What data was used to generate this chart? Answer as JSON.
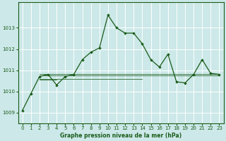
{
  "title": "Graphe pression niveau de la mer (hPa)",
  "background_color": "#cce8e8",
  "grid_color": "#ffffff",
  "line_color": "#1a5c1a",
  "marker_color": "#1a5c1a",
  "xlim": [
    -0.5,
    23.5
  ],
  "ylim": [
    1008.5,
    1014.2
  ],
  "yticks": [
    1009,
    1010,
    1011,
    1012,
    1013
  ],
  "xticks": [
    0,
    1,
    2,
    3,
    4,
    5,
    6,
    7,
    8,
    9,
    10,
    11,
    12,
    13,
    14,
    15,
    16,
    17,
    18,
    19,
    20,
    21,
    22,
    23
  ],
  "main_series": {
    "x": [
      0,
      1,
      2,
      3,
      4,
      5,
      6,
      7,
      8,
      9,
      10,
      11,
      12,
      13,
      14,
      15,
      16,
      17,
      18,
      19,
      20,
      21,
      22,
      23
    ],
    "y": [
      1009.1,
      1009.9,
      1010.7,
      1010.8,
      1010.3,
      1010.7,
      1010.8,
      1011.5,
      1011.85,
      1012.05,
      1013.6,
      1013.0,
      1012.75,
      1012.75,
      1012.25,
      1011.5,
      1011.15,
      1011.75,
      1010.45,
      1010.4,
      1010.8,
      1011.5,
      1010.85,
      1010.8
    ]
  },
  "flat_lines": [
    {
      "x": [
        2,
        23
      ],
      "y": [
        1010.75,
        1010.75
      ]
    },
    {
      "x": [
        2,
        14
      ],
      "y": [
        1010.6,
        1010.6
      ]
    },
    {
      "x": [
        2,
        4
      ],
      "y": [
        1010.55,
        1010.55
      ]
    },
    {
      "x": [
        2,
        23
      ],
      "y": [
        1010.82,
        1010.82
      ]
    }
  ],
  "title_fontsize": 5.5,
  "tick_fontsize": 5.0,
  "figwidth": 3.2,
  "figheight": 2.0,
  "dpi": 100
}
